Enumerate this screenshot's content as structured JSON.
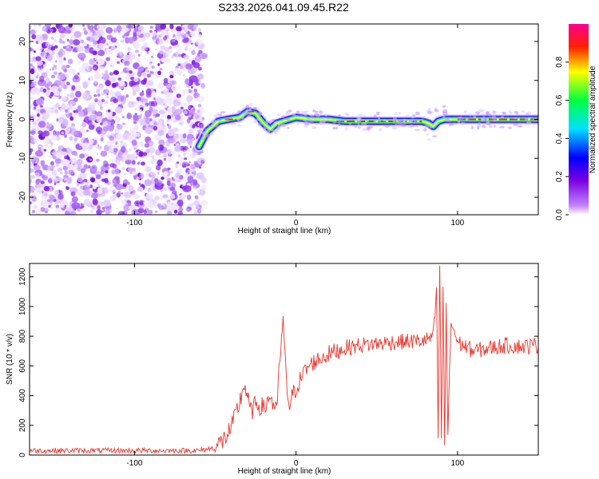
{
  "title": "S233.2026.041.09.45.R22",
  "chart_data": [
    {
      "type": "heatmap",
      "xlabel": "Height of straight line (km)",
      "ylabel": "Frequency (Hz)",
      "xlim": [
        -165,
        150
      ],
      "ylim": [
        -24.5,
        24.5
      ],
      "x_ticks": [
        -100,
        0,
        100
      ],
      "y_ticks": [
        -20,
        -10,
        0,
        10,
        20
      ],
      "noise_region_x": [
        -165,
        -60
      ],
      "ridge": {
        "description_points_x": [
          -60,
          -55,
          -48,
          -42,
          -35,
          -30,
          -25,
          -20,
          -16,
          -12,
          -8,
          -4,
          0,
          10,
          20,
          30,
          60,
          78,
          82,
          85,
          88,
          92,
          100,
          120,
          150
        ],
        "description_points_freq": [
          -7,
          -3,
          -0.5,
          0,
          0.5,
          2,
          1.5,
          -1,
          -2.5,
          -1,
          -0.5,
          0,
          0.5,
          0,
          0,
          -0.5,
          -0.5,
          -0.5,
          -1,
          -1.8,
          -0.5,
          0,
          0,
          0,
          0
        ]
      },
      "colorbar": {
        "label": "Normalized spectral amplitude",
        "range": [
          0.0,
          1.0
        ],
        "ticks": [
          0.0,
          0.2,
          0.4,
          0.6,
          0.8
        ],
        "colormap": [
          "#ffffff",
          "#8a2be2",
          "#0000ff",
          "#00ffff",
          "#00ff00",
          "#ffff00",
          "#ff0000",
          "#ff00aa"
        ]
      }
    },
    {
      "type": "line",
      "xlabel": "Height of straight line (km)",
      "ylabel": "SNR (10 * v/v)",
      "xlim": [
        -165,
        150
      ],
      "ylim": [
        0,
        1290
      ],
      "x_ticks": [
        -100,
        0,
        100
      ],
      "y_ticks": [
        0,
        200,
        400,
        600,
        800,
        1000,
        1200
      ],
      "series": [
        {
          "name": "SNR",
          "color": "#e8332a",
          "x": [
            -165,
            -60,
            -50,
            -45,
            -40,
            -35,
            -32,
            -28,
            -24,
            -20,
            -16,
            -12,
            -10,
            -8,
            -6,
            -4,
            -2,
            0,
            5,
            10,
            20,
            30,
            40,
            60,
            80,
            85,
            87,
            88,
            89,
            90,
            91,
            92,
            93,
            94,
            96,
            100,
            110,
            120,
            130,
            140,
            150
          ],
          "values": [
            30,
            30,
            50,
            100,
            180,
            350,
            480,
            290,
            350,
            310,
            400,
            280,
            650,
            900,
            480,
            330,
            400,
            450,
            560,
            620,
            680,
            720,
            740,
            760,
            770,
            800,
            1100,
            120,
            1290,
            80,
            1150,
            60,
            1000,
            150,
            900,
            760,
            700,
            720,
            740,
            730,
            740
          ]
        }
      ]
    }
  ]
}
